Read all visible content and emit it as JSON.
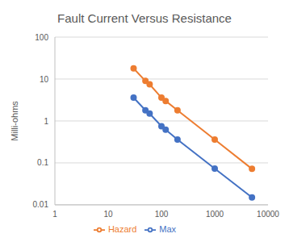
{
  "chart_data": {
    "type": "line",
    "title": "Fault Current Versus Resistance",
    "y_label": "Milli-ohms",
    "x": [
      30,
      50,
      60,
      100,
      120,
      200,
      1000,
      5000
    ],
    "series": [
      {
        "name": "Max",
        "color": "#4472c4",
        "marker": "circle",
        "line_style": "solid",
        "values": [
          3.6,
          1.8,
          1.5,
          0.75,
          0.62,
          0.36,
          0.073,
          0.015
        ]
      },
      {
        "name": "Hazard",
        "color": "#ed7d31",
        "marker": "circle",
        "line_style": "solid",
        "values": [
          18,
          9,
          7.5,
          3.6,
          3,
          1.8,
          0.36,
          0.072
        ]
      }
    ],
    "xlim": [
      1,
      10000
    ],
    "xticks": [
      1,
      10,
      100,
      1000,
      10000
    ],
    "ylim": [
      0.01,
      100
    ],
    "yticks": [
      0.01,
      0.1,
      1,
      10,
      100
    ],
    "log": true,
    "grid": true,
    "legend": "bottom"
  }
}
